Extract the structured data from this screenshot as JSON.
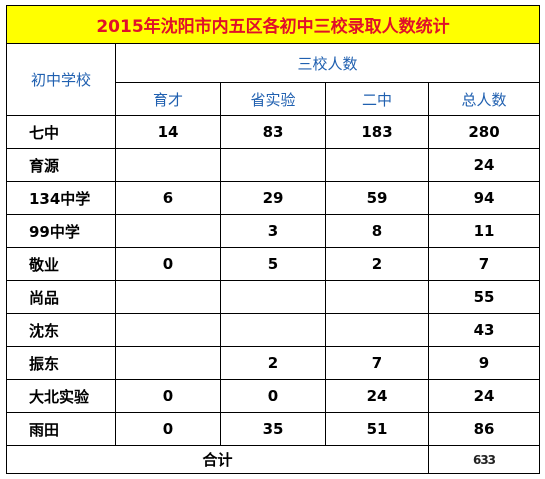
{
  "title": "2015年沈阳市内五区各初中三校录取人数统计",
  "header": {
    "school_col": "初中学校",
    "group": "三校人数",
    "columns": [
      "育才",
      "省实验",
      "二中",
      "总人数"
    ]
  },
  "rows": [
    {
      "school": "七中",
      "values": [
        "14",
        "83",
        "183",
        "280"
      ]
    },
    {
      "school": "育源",
      "values": [
        "",
        "",
        "",
        "24"
      ]
    },
    {
      "school": "134中学",
      "values": [
        "6",
        "29",
        "59",
        "94"
      ]
    },
    {
      "school": "99中学",
      "values": [
        "",
        "3",
        "8",
        "11"
      ]
    },
    {
      "school": "敬业",
      "values": [
        "0",
        "5",
        "2",
        "7"
      ]
    },
    {
      "school": "尚品",
      "values": [
        "",
        "",
        "",
        "55"
      ]
    },
    {
      "school": "沈东",
      "values": [
        "",
        "",
        "",
        "43"
      ]
    },
    {
      "school": "振东",
      "values": [
        "",
        "2",
        "7",
        "9"
      ]
    },
    {
      "school": "大北实验",
      "values": [
        "0",
        "0",
        "24",
        "24"
      ]
    },
    {
      "school": "雨田",
      "values": [
        "0",
        "35",
        "51",
        "86"
      ]
    }
  ],
  "total": {
    "label": "合计",
    "value": "633"
  }
}
